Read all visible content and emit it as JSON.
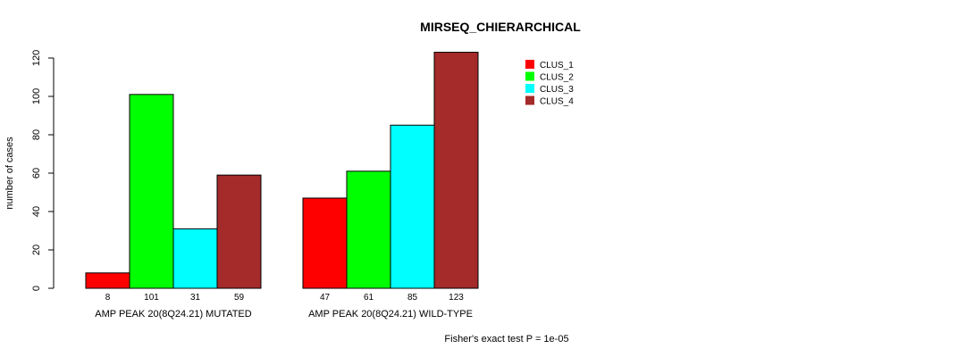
{
  "chart_data": {
    "type": "bar",
    "title": "MIRSEQ_CHIERARCHICAL",
    "ylabel": "number of cases",
    "xlabel": "",
    "ylim": [
      0,
      120
    ],
    "yticks": [
      0,
      20,
      40,
      60,
      80,
      100,
      120
    ],
    "grid": false,
    "legend_position": "top-right",
    "categories": [
      "AMP PEAK 20(8Q24.21) MUTATED",
      "AMP PEAK 20(8Q24.21) WILD-TYPE"
    ],
    "series": [
      {
        "name": "CLUS_1",
        "color": "#ff0000",
        "values": [
          8,
          47
        ]
      },
      {
        "name": "CLUS_2",
        "color": "#00ff00",
        "values": [
          101,
          61
        ]
      },
      {
        "name": "CLUS_3",
        "color": "#00ffff",
        "values": [
          31,
          85
        ]
      },
      {
        "name": "CLUS_4",
        "color": "#a52a2a",
        "values": [
          59,
          123
        ]
      }
    ],
    "footnote": "Fisher's exact test P = 1e-05"
  }
}
